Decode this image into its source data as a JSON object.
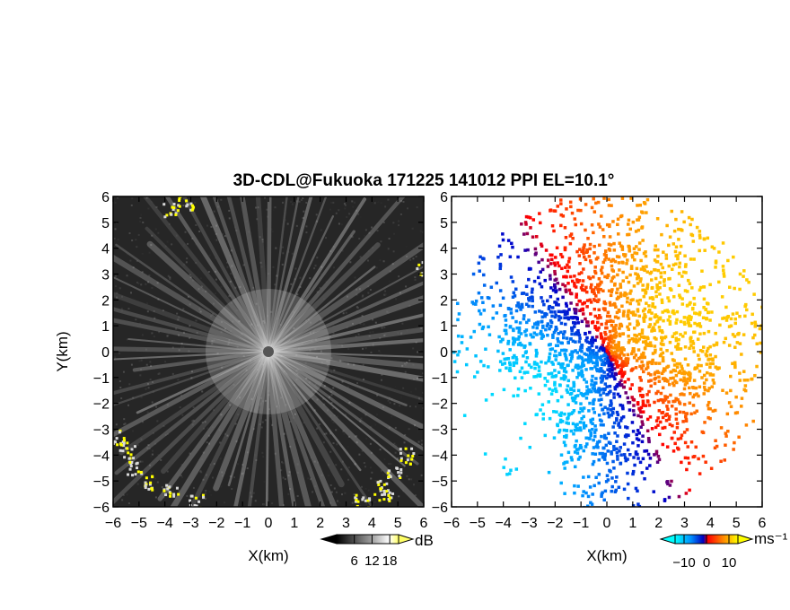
{
  "title": "3D-CDL@Fukuoka 171225 141012 PPI EL=10.1°",
  "chart_data": [
    {
      "type": "heatmap",
      "panel": "left",
      "field": "SNR",
      "xlabel": "X(km)",
      "ylabel": "Y(km)",
      "xlim": [
        -6,
        6
      ],
      "ylim": [
        -6,
        6
      ],
      "x_ticks": [
        -6,
        -5,
        -4,
        -3,
        -2,
        -1,
        0,
        1,
        2,
        3,
        4,
        5,
        6
      ],
      "y_ticks": [
        -6,
        -5,
        -4,
        -3,
        -2,
        -1,
        0,
        1,
        2,
        3,
        4,
        5,
        6
      ],
      "colorbar": {
        "unit": "dB",
        "ticks": [
          6,
          12,
          18
        ],
        "colors": [
          "#000000",
          "#ffffff",
          "#ffff00"
        ],
        "extend": "both"
      },
      "colors": {
        "background": "#2a2a2a",
        "rays": "#d8d8d8",
        "hot": "#ffff00",
        "center": "#555555"
      }
    },
    {
      "type": "heatmap",
      "panel": "right",
      "field": "Doppler velocity",
      "xlabel": "X(km)",
      "xlim": [
        -6,
        6
      ],
      "ylim": [
        -6,
        6
      ],
      "x_ticks": [
        -6,
        -5,
        -4,
        -3,
        -2,
        -1,
        0,
        1,
        2,
        3,
        4,
        5,
        6
      ],
      "y_ticks": [
        -6,
        -5,
        -4,
        -3,
        -2,
        -1,
        0,
        1,
        2,
        3,
        4,
        5,
        6
      ],
      "colorbar": {
        "unit": "ms⁻¹",
        "ticks": [
          -10,
          0,
          10
        ],
        "colors": [
          "#00ffff",
          "#0060ff",
          "#0000c0",
          "#ff0000",
          "#ff8000",
          "#ffff00"
        ],
        "extend": "both"
      }
    }
  ]
}
